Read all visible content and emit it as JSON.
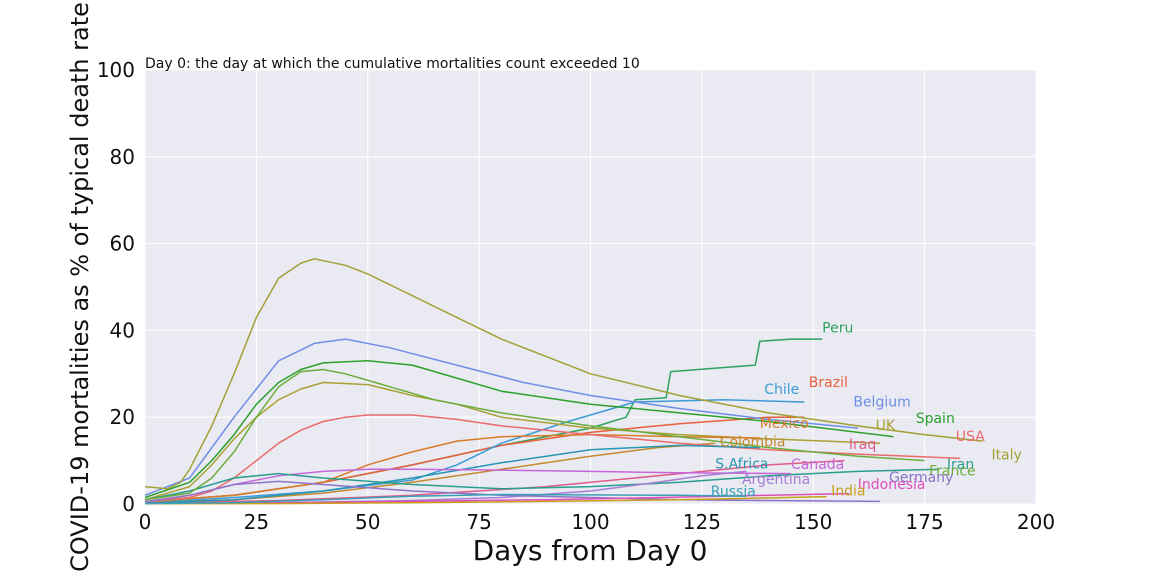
{
  "chart_data": {
    "type": "line",
    "annotation": "Day 0: the day at which the cumulative mortalities count exceeded 10",
    "xlabel": "Days from Day 0",
    "ylabel": "COVID-19 mortalities as % of typical death rate",
    "xlim": [
      0,
      200
    ],
    "ylim": [
      0,
      100
    ],
    "xticks": [
      0,
      25,
      50,
      75,
      100,
      125,
      150,
      175,
      200
    ],
    "yticks": [
      0,
      20,
      40,
      60,
      80,
      100
    ],
    "grid": true,
    "series": [
      {
        "name": "Peru",
        "color": "#2ca25f",
        "label_pos": [
          152,
          39.5
        ],
        "points": [
          [
            0,
            0.5
          ],
          [
            20,
            2
          ],
          [
            40,
            5
          ],
          [
            60,
            9
          ],
          [
            80,
            13.5
          ],
          [
            100,
            17.5
          ],
          [
            108,
            20
          ],
          [
            110,
            24
          ],
          [
            117,
            24.5
          ],
          [
            118,
            30.5
          ],
          [
            137,
            32
          ],
          [
            138,
            37.5
          ],
          [
            145,
            38
          ],
          [
            152,
            38
          ]
        ]
      },
      {
        "name": "Brazil",
        "color": "#e8603c",
        "label_pos": [
          149,
          27
        ],
        "points": [
          [
            0,
            0.5
          ],
          [
            20,
            2
          ],
          [
            40,
            5
          ],
          [
            60,
            9
          ],
          [
            80,
            13.5
          ],
          [
            100,
            16.5
          ],
          [
            120,
            18.5
          ],
          [
            140,
            20
          ],
          [
            148,
            20
          ]
        ]
      },
      {
        "name": "Chile",
        "color": "#3c9bd6",
        "label_pos": [
          139,
          25.3
        ],
        "points": [
          [
            0,
            0.3
          ],
          [
            20,
            1.5
          ],
          [
            40,
            3
          ],
          [
            60,
            5.5
          ],
          [
            70,
            9
          ],
          [
            80,
            14
          ],
          [
            95,
            19
          ],
          [
            110,
            23.5
          ],
          [
            130,
            24
          ],
          [
            148,
            23.5
          ]
        ]
      },
      {
        "name": "Belgium",
        "color": "#6f8ee6",
        "label_pos": [
          159,
          22.5
        ],
        "points": [
          [
            0,
            2
          ],
          [
            10,
            6
          ],
          [
            20,
            20
          ],
          [
            30,
            33
          ],
          [
            38,
            37
          ],
          [
            45,
            38
          ],
          [
            55,
            36
          ],
          [
            70,
            32
          ],
          [
            85,
            28
          ],
          [
            100,
            25
          ],
          [
            120,
            22
          ],
          [
            140,
            19.5
          ],
          [
            160,
            17.5
          ]
        ]
      },
      {
        "name": "Spain",
        "color": "#2ca02c",
        "label_pos": [
          173,
          18.7
        ],
        "points": [
          [
            0,
            1.5
          ],
          [
            10,
            5
          ],
          [
            15,
            10
          ],
          [
            20,
            16
          ],
          [
            25,
            23
          ],
          [
            30,
            28
          ],
          [
            35,
            31
          ],
          [
            40,
            32.5
          ],
          [
            50,
            33
          ],
          [
            60,
            32
          ],
          [
            70,
            29
          ],
          [
            80,
            26
          ],
          [
            100,
            23
          ],
          [
            120,
            21
          ],
          [
            140,
            19
          ],
          [
            168,
            15.5
          ]
        ]
      },
      {
        "name": "UK",
        "color": "#a9a135",
        "label_pos": [
          164,
          17
        ],
        "points": [
          [
            0,
            1
          ],
          [
            10,
            4
          ],
          [
            15,
            9
          ],
          [
            20,
            15
          ],
          [
            25,
            20
          ],
          [
            30,
            24
          ],
          [
            35,
            26.5
          ],
          [
            40,
            28
          ],
          [
            50,
            27.5
          ],
          [
            60,
            25
          ],
          [
            70,
            23
          ],
          [
            80,
            20
          ],
          [
            100,
            17.5
          ],
          [
            120,
            16
          ],
          [
            140,
            15
          ],
          [
            165,
            14
          ]
        ]
      },
      {
        "name": "Mexico",
        "color": "#d87b2a",
        "label_pos": [
          138,
          17.5
        ],
        "points": [
          [
            0,
            0.5
          ],
          [
            20,
            2
          ],
          [
            40,
            5
          ],
          [
            50,
            9
          ],
          [
            60,
            12
          ],
          [
            70,
            14.5
          ],
          [
            80,
            15.5
          ],
          [
            100,
            16
          ],
          [
            120,
            15.5
          ],
          [
            138,
            15.2
          ]
        ]
      },
      {
        "name": "Colombia",
        "color": "#c58a2e",
        "label_pos": [
          129,
          13.2
        ],
        "points": [
          [
            0,
            0.3
          ],
          [
            20,
            1
          ],
          [
            40,
            2.5
          ],
          [
            60,
            5
          ],
          [
            80,
            8
          ],
          [
            100,
            11
          ],
          [
            115,
            13
          ],
          [
            128,
            14
          ]
        ]
      },
      {
        "name": "Iraq",
        "color": "#e05a8a",
        "label_pos": [
          158,
          12.7
        ],
        "points": [
          [
            0,
            0.2
          ],
          [
            30,
            0.8
          ],
          [
            60,
            2
          ],
          [
            90,
            4
          ],
          [
            120,
            7
          ],
          [
            140,
            9
          ],
          [
            157,
            10
          ]
        ]
      },
      {
        "name": "USA",
        "color": "#ea6b6b",
        "label_pos": [
          182,
          14.5
        ],
        "points": [
          [
            0,
            0.5
          ],
          [
            10,
            1.5
          ],
          [
            15,
            3
          ],
          [
            20,
            6
          ],
          [
            25,
            10
          ],
          [
            30,
            14
          ],
          [
            35,
            17
          ],
          [
            40,
            19
          ],
          [
            45,
            20
          ],
          [
            50,
            20.5
          ],
          [
            60,
            20.5
          ],
          [
            70,
            19.5
          ],
          [
            80,
            18
          ],
          [
            100,
            16
          ],
          [
            120,
            14
          ],
          [
            140,
            12.5
          ],
          [
            160,
            11.5
          ],
          [
            183,
            10.5
          ]
        ]
      },
      {
        "name": "Italy",
        "color": "#a3a036",
        "label_pos": [
          190,
          10.2
        ],
        "points": [
          [
            0,
            4
          ],
          [
            5,
            3.5
          ],
          [
            8,
            5
          ],
          [
            10,
            8
          ],
          [
            15,
            18
          ],
          [
            20,
            30
          ],
          [
            25,
            43
          ],
          [
            30,
            52
          ],
          [
            35,
            55.5
          ],
          [
            38,
            56.5
          ],
          [
            45,
            55
          ],
          [
            50,
            53
          ],
          [
            60,
            48
          ],
          [
            70,
            43
          ],
          [
            80,
            38
          ],
          [
            90,
            34
          ],
          [
            100,
            30
          ],
          [
            120,
            25
          ],
          [
            140,
            21
          ],
          [
            160,
            18
          ],
          [
            175,
            16
          ],
          [
            188,
            14.5
          ]
        ]
      },
      {
        "name": "S.Africa",
        "color": "#2796b0",
        "label_pos": [
          128,
          8.2
        ],
        "points": [
          [
            0,
            0.2
          ],
          [
            20,
            1
          ],
          [
            40,
            3
          ],
          [
            60,
            6
          ],
          [
            80,
            9.5
          ],
          [
            100,
            12.5
          ],
          [
            120,
            13.5
          ],
          [
            138,
            13
          ]
        ]
      },
      {
        "name": "Canada",
        "color": "#c567d8",
        "label_pos": [
          145,
          8.1
        ],
        "points": [
          [
            0,
            0.5
          ],
          [
            10,
            2
          ],
          [
            20,
            4.5
          ],
          [
            30,
            6.5
          ],
          [
            40,
            7.5
          ],
          [
            50,
            8
          ],
          [
            60,
            8
          ],
          [
            80,
            7.8
          ],
          [
            100,
            7.5
          ],
          [
            120,
            7.2
          ],
          [
            145,
            7
          ]
        ]
      },
      {
        "name": "Iran",
        "color": "#2a9e8c",
        "label_pos": [
          180,
          8.1
        ],
        "points": [
          [
            0,
            1
          ],
          [
            10,
            3
          ],
          [
            20,
            6
          ],
          [
            30,
            7
          ],
          [
            40,
            6
          ],
          [
            60,
            4.5
          ],
          [
            80,
            3.5
          ],
          [
            100,
            4
          ],
          [
            120,
            5
          ],
          [
            140,
            6.5
          ],
          [
            160,
            7.5
          ],
          [
            178,
            8
          ]
        ]
      },
      {
        "name": "France",
        "color": "#6aad3b",
        "label_pos": [
          176,
          6.6
        ],
        "points": [
          [
            0,
            1
          ],
          [
            10,
            2.5
          ],
          [
            15,
            6
          ],
          [
            20,
            12
          ],
          [
            25,
            20
          ],
          [
            30,
            27
          ],
          [
            35,
            30.5
          ],
          [
            40,
            31
          ],
          [
            45,
            30
          ],
          [
            55,
            27
          ],
          [
            65,
            24
          ],
          [
            80,
            21
          ],
          [
            100,
            18
          ],
          [
            120,
            15.5
          ],
          [
            140,
            13
          ],
          [
            160,
            11
          ],
          [
            175,
            10
          ]
        ]
      },
      {
        "name": "Argentina",
        "color": "#a77dd6",
        "label_pos": [
          134,
          4.6
        ],
        "points": [
          [
            0,
            0.1
          ],
          [
            30,
            0.3
          ],
          [
            60,
            0.8
          ],
          [
            80,
            1.5
          ],
          [
            100,
            3
          ],
          [
            115,
            5
          ],
          [
            125,
            6.5
          ],
          [
            135,
            7.5
          ]
        ]
      },
      {
        "name": "Germany",
        "color": "#8c74c7",
        "label_pos": [
          167,
          5.1
        ],
        "points": [
          [
            0,
            0.5
          ],
          [
            10,
            2
          ],
          [
            20,
            4.5
          ],
          [
            30,
            5.2
          ],
          [
            40,
            4.5
          ],
          [
            60,
            3
          ],
          [
            80,
            2
          ],
          [
            100,
            1.5
          ],
          [
            120,
            1
          ],
          [
            140,
            0.8
          ],
          [
            165,
            0.6
          ]
        ]
      },
      {
        "name": "Indonesia",
        "color": "#dd4fbb",
        "label_pos": [
          160,
          3.5
        ],
        "points": [
          [
            0,
            0.1
          ],
          [
            30,
            0.3
          ],
          [
            60,
            0.6
          ],
          [
            90,
            1
          ],
          [
            120,
            1.6
          ],
          [
            140,
            2
          ],
          [
            158,
            2.4
          ]
        ]
      },
      {
        "name": "India",
        "color": "#c9a01a",
        "label_pos": [
          154,
          2
        ],
        "points": [
          [
            0,
            0.05
          ],
          [
            30,
            0.1
          ],
          [
            60,
            0.3
          ],
          [
            90,
            0.6
          ],
          [
            120,
            1
          ],
          [
            140,
            1.4
          ],
          [
            153,
            1.7
          ]
        ]
      },
      {
        "name": "Russia",
        "color": "#3aa0b5",
        "label_pos": [
          127,
          1.8
        ],
        "points": [
          [
            0,
            0.1
          ],
          [
            20,
            0.3
          ],
          [
            40,
            1
          ],
          [
            60,
            1.8
          ],
          [
            80,
            2.2
          ],
          [
            100,
            2.1
          ],
          [
            120,
            2
          ],
          [
            135,
            1.8
          ]
        ]
      }
    ]
  }
}
